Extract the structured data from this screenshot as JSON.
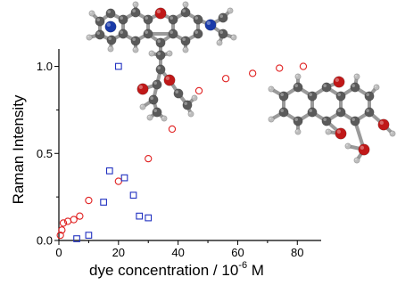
{
  "chart_data": {
    "type": "scatter",
    "title": "",
    "xlabel": "dye concentration / 10",
    "xlabel_exponent": "-6",
    "xlabel_unit": " M",
    "ylabel": "Raman Intensity",
    "xlim": [
      0,
      88
    ],
    "ylim": [
      0,
      1.1
    ],
    "x_ticks": [
      0,
      20,
      40,
      60,
      80
    ],
    "x_tick_labels": [
      "0",
      "20",
      "40",
      "60",
      "80"
    ],
    "y_ticks": [
      0.0,
      0.5,
      1.0
    ],
    "y_tick_labels": [
      "0.0",
      "0.5",
      "1.0"
    ],
    "grid": false,
    "series": [
      {
        "marker": "circle",
        "color": "#e02020",
        "points": [
          [
            0.5,
            0.03
          ],
          [
            1,
            0.06
          ],
          [
            1.5,
            0.1
          ],
          [
            3,
            0.11
          ],
          [
            5,
            0.12
          ],
          [
            7,
            0.14
          ],
          [
            10,
            0.23
          ],
          [
            20,
            0.34
          ],
          [
            30,
            0.47
          ],
          [
            38,
            0.64
          ],
          [
            47,
            0.86
          ],
          [
            56,
            0.93
          ],
          [
            65,
            0.96
          ],
          [
            74,
            0.99
          ],
          [
            82,
            1.0
          ]
        ]
      },
      {
        "marker": "square",
        "color": "#2030c0",
        "points": [
          [
            6,
            0.01
          ],
          [
            10,
            0.03
          ],
          [
            15,
            0.22
          ],
          [
            17,
            0.4
          ],
          [
            20,
            1.0
          ],
          [
            22,
            0.36
          ],
          [
            25,
            0.26
          ],
          [
            27,
            0.14
          ],
          [
            30,
            0.13
          ]
        ]
      }
    ]
  },
  "colors": {
    "atom_carbon": "#5a5a5a",
    "atom_hydrogen": "#bdbdbd",
    "atom_oxygen": "#c01818",
    "atom_nitrogen": "#1a3aa8"
  }
}
